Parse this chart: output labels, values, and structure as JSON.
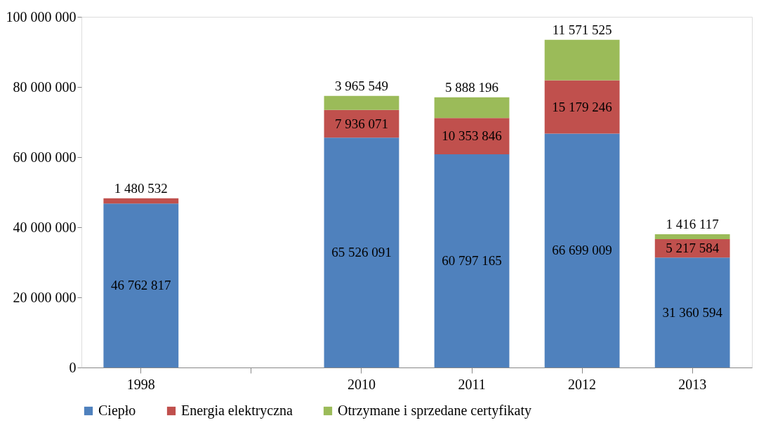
{
  "chart_data": {
    "type": "bar",
    "stacked": true,
    "categories": [
      "1998",
      null,
      "2010",
      "2011",
      "2012",
      "2013"
    ],
    "series": [
      {
        "name": "Ciepło",
        "color": "#4f81bd",
        "values": [
          46762817,
          null,
          65526091,
          60797165,
          66699009,
          31360594
        ],
        "value_labels": [
          "46 762 817",
          null,
          "65 526 091",
          "60 797 165",
          "66 699 009",
          "31 360 594"
        ]
      },
      {
        "name": "Energia elektryczna",
        "color": "#c0504d",
        "values": [
          1480532,
          null,
          7936071,
          10353846,
          15179246,
          5217584
        ],
        "value_labels": [
          "1 480 532",
          null,
          "7 936 071",
          "10 353 846",
          "15 179 246",
          "5 217 584"
        ]
      },
      {
        "name": "Otrzymane i sprzedane certyfikaty",
        "color": "#9bbb59",
        "values": [
          null,
          null,
          3965549,
          5888196,
          11571525,
          1416117
        ],
        "value_labels": [
          null,
          null,
          "3 965 549",
          "5 888 196",
          "11 571 525",
          "1 416 117"
        ]
      }
    ],
    "ylim": [
      0,
      100000000
    ],
    "yticks": [
      0,
      {
        "value": 20000000,
        "label": "20 000 000"
      },
      {
        "value": 40000000,
        "label": "40 000 000"
      },
      {
        "value": 60000000,
        "label": "60 000 000"
      },
      {
        "value": 80000000,
        "label": "80 000 000"
      },
      {
        "value": 100000000,
        "label": "100 000 000"
      }
    ],
    "grid": false,
    "legend": "bottom"
  }
}
